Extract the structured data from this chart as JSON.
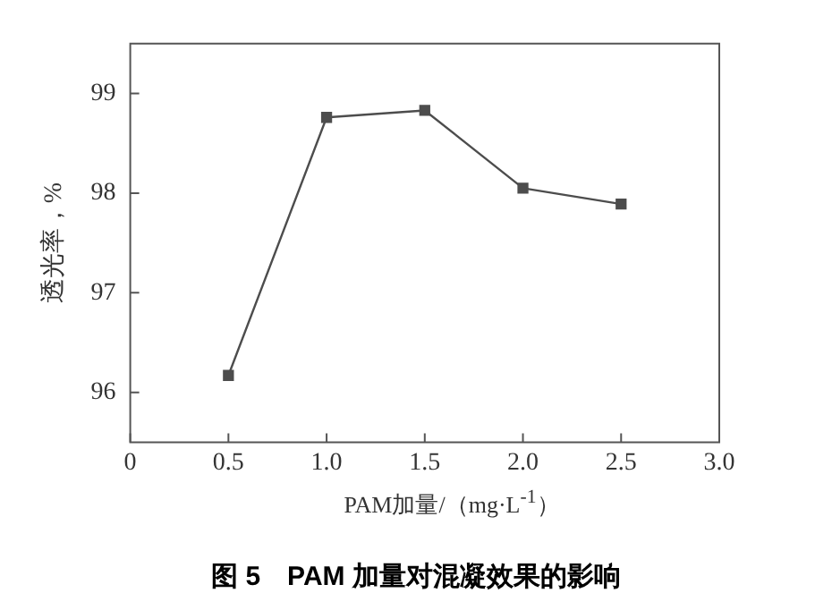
{
  "chart_data": {
    "type": "line",
    "title": "图 5　PAM 加量对混凝效果的影响",
    "xlabel": "PAM加量/（mg·L$^{-1}$）",
    "ylabel": "透光率，%",
    "x": [
      0.5,
      1.0,
      1.5,
      2.0,
      2.5
    ],
    "series": [
      {
        "color": "#4d4d4d",
        "values": [
          96.17,
          98.76,
          98.83,
          98.05,
          97.89
        ]
      }
    ],
    "xlim": [
      0,
      3
    ],
    "xticks": [
      0,
      0.5,
      {
        "value": 1,
        "label": "1.0"
      },
      1.5,
      {
        "value": 2,
        "label": "2.0"
      },
      2.5,
      {
        "value": 3,
        "label": "3.0"
      }
    ],
    "ylim": [
      95.5,
      99.5
    ],
    "yticks": [
      96,
      97,
      98,
      99
    ],
    "marker": "square",
    "line_style": "solid",
    "grid": false,
    "legend": false
  }
}
